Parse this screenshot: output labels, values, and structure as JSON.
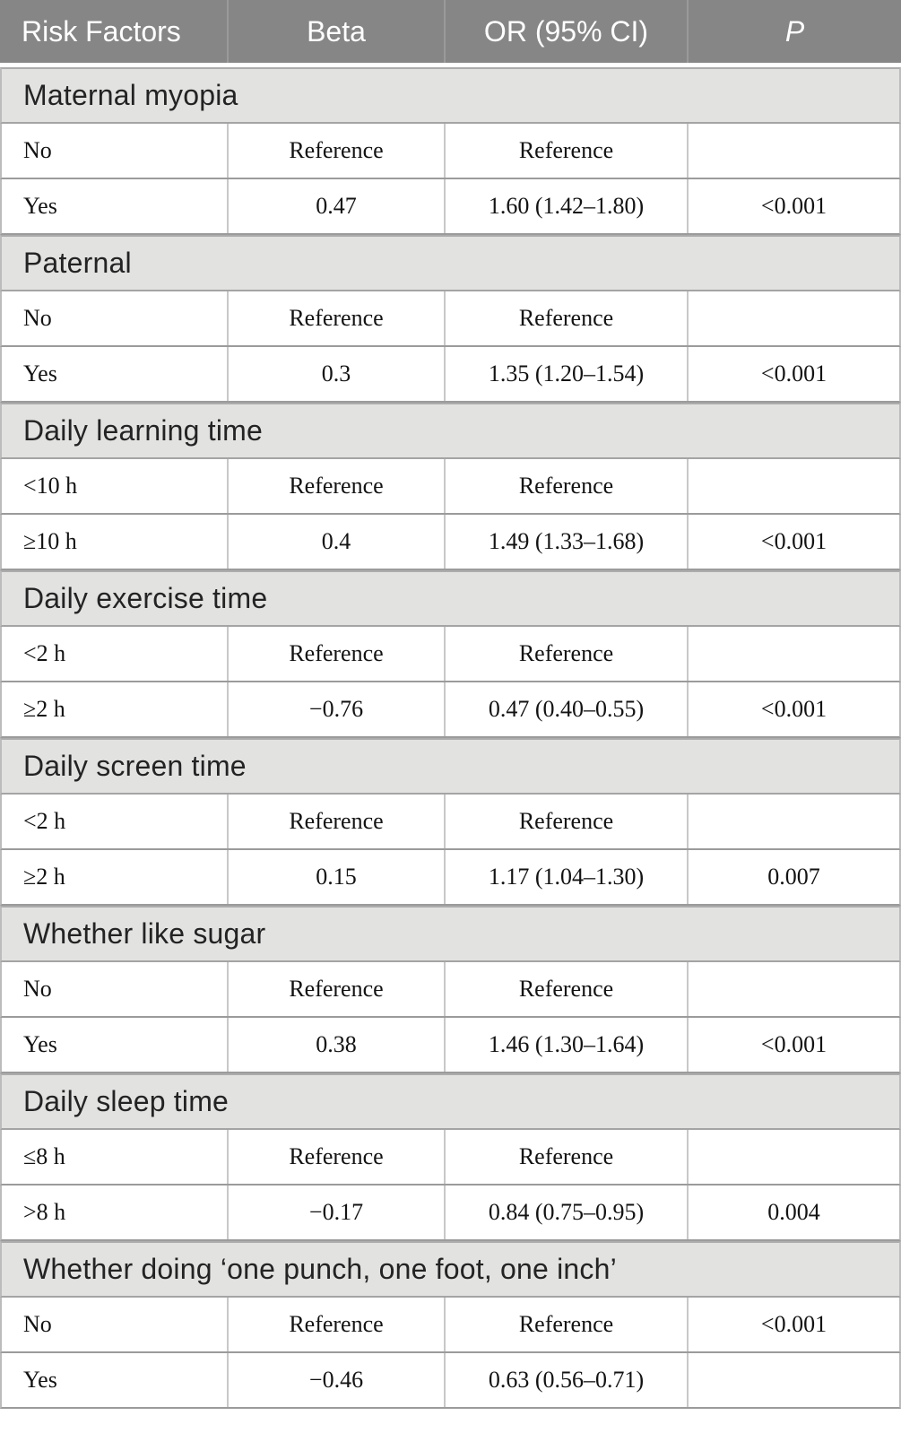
{
  "colors": {
    "header_bg": "#868686",
    "section_bg": "#e2e2e1",
    "header_text": "#ffffff",
    "body_text": "#131313"
  },
  "table": {
    "columns": [
      "Risk Factors",
      "Beta",
      "OR (95% CI)",
      "P"
    ],
    "sections": [
      {
        "title": "Maternal myopia",
        "rows": [
          [
            "No",
            "Reference",
            "Reference",
            ""
          ],
          [
            "Yes",
            "0.47",
            "1.60 (1.42–1.80)",
            "<0.001"
          ]
        ]
      },
      {
        "title": "Paternal",
        "rows": [
          [
            "No",
            "Reference",
            "Reference",
            ""
          ],
          [
            "Yes",
            "0.3",
            "1.35 (1.20–1.54)",
            "<0.001"
          ]
        ]
      },
      {
        "title": "Daily learning time",
        "rows": [
          [
            "<10 h",
            "Reference",
            "Reference",
            ""
          ],
          [
            "≥10 h",
            "0.4",
            "1.49 (1.33–1.68)",
            "<0.001"
          ]
        ]
      },
      {
        "title": "Daily exercise time",
        "rows": [
          [
            "<2 h",
            "Reference",
            "Reference",
            ""
          ],
          [
            "≥2 h",
            "−0.76",
            "0.47 (0.40–0.55)",
            "<0.001"
          ]
        ]
      },
      {
        "title": "Daily screen time",
        "rows": [
          [
            "<2 h",
            "Reference",
            "Reference",
            ""
          ],
          [
            "≥2 h",
            "0.15",
            "1.17 (1.04–1.30)",
            "0.007"
          ]
        ]
      },
      {
        "title": "Whether like sugar",
        "rows": [
          [
            "No",
            "Reference",
            "Reference",
            ""
          ],
          [
            "Yes",
            "0.38",
            "1.46 (1.30–1.64)",
            "<0.001"
          ]
        ]
      },
      {
        "title": "Daily sleep time",
        "rows": [
          [
            "≤8 h",
            "Reference",
            "Reference",
            ""
          ],
          [
            ">8 h",
            "−0.17",
            "0.84 (0.75–0.95)",
            "0.004"
          ]
        ]
      },
      {
        "title": "Whether doing ‘one punch, one foot, one inch’",
        "rows": [
          [
            "No",
            "Reference",
            "Reference",
            "<0.001"
          ],
          [
            "Yes",
            "−0.46",
            "0.63 (0.56–0.71)",
            ""
          ]
        ]
      }
    ]
  }
}
